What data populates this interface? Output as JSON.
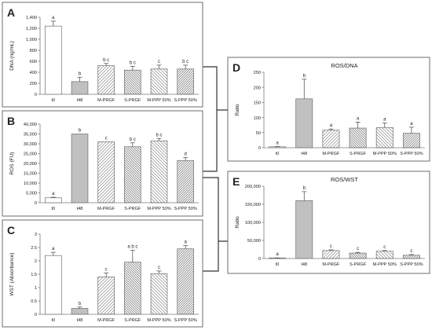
{
  "chart_data": [
    {
      "id": "A",
      "type": "bar",
      "panel_label": "A",
      "title": "",
      "ylabel": "DNA (ng/mL)",
      "ylim": [
        0,
        1400
      ],
      "yticks": [
        "0",
        "200",
        "400",
        "600",
        "800",
        "1,000",
        "1,200",
        "1,400"
      ],
      "categories": [
        "t0",
        "t48",
        "M-PRGF",
        "S-PRGF",
        "M-PPP 50%",
        "S-PPP 50%"
      ],
      "values": [
        1240,
        230,
        520,
        440,
        460,
        460
      ],
      "errors": [
        90,
        80,
        40,
        70,
        70,
        70
      ],
      "letters": [
        "a",
        "b",
        "b c",
        "b c",
        "c",
        "b c"
      ]
    },
    {
      "id": "B",
      "type": "bar",
      "panel_label": "B",
      "title": "",
      "ylabel": "ROS (FU)",
      "ylim": [
        0,
        40000
      ],
      "yticks": [
        "0",
        "5,000",
        "10,000",
        "15,000",
        "20,000",
        "25,000",
        "30,000",
        "35,000",
        "40,000"
      ],
      "categories": [
        "t0",
        "t48",
        "M-PRGF",
        "S-PRGF",
        "M-PPP 50%",
        "S-PPP 50%"
      ],
      "values": [
        2500,
        35000,
        31000,
        28500,
        31500,
        21500
      ],
      "errors": [
        300,
        0,
        0,
        2000,
        1200,
        1500
      ],
      "letters": [
        "a",
        "b",
        "c",
        "b c",
        "b c",
        "d"
      ]
    },
    {
      "id": "C",
      "type": "bar",
      "panel_label": "C",
      "title": "",
      "ylabel": "WST (Absorbance)",
      "ylim": [
        0,
        3
      ],
      "yticks": [
        "0",
        "0.5",
        "1",
        "1.5",
        "2",
        "2.5",
        "3"
      ],
      "categories": [
        "t0",
        "t48",
        "M-PRGF",
        "S-PRGF",
        "M-PPP 50%",
        "S-PPP 50%"
      ],
      "values": [
        2.2,
        0.22,
        1.4,
        1.95,
        1.52,
        2.45
      ],
      "errors": [
        0.12,
        0.05,
        0.15,
        0.45,
        0.1,
        0.12
      ],
      "letters": [
        "a",
        "b",
        "c",
        "a b c",
        "c",
        "a"
      ]
    },
    {
      "id": "D",
      "type": "bar",
      "panel_label": "D",
      "title": "ROS/DNA",
      "ylabel": "Ratio",
      "ylim": [
        0,
        250
      ],
      "yticks": [
        "0",
        "50",
        "100",
        "150",
        "200",
        "250"
      ],
      "categories": [
        "t0",
        "t48",
        "M-PRGF",
        "S-PRGF",
        "M-PPP 50%",
        "S-PPP 50%"
      ],
      "values": [
        3,
        162,
        58,
        65,
        67,
        48
      ],
      "errors": [
        1,
        65,
        4,
        20,
        15,
        20
      ],
      "letters": [
        "a",
        "b",
        "a",
        "a",
        "a",
        "a"
      ]
    },
    {
      "id": "E",
      "type": "bar",
      "panel_label": "E",
      "title": "ROS/WST",
      "ylabel": "Ratio",
      "ylim": [
        0,
        200000
      ],
      "yticks": [
        "0",
        "50,000",
        "100,000",
        "150,000",
        "200,000"
      ],
      "categories": [
        "t0",
        "t48",
        "M-PRGF",
        "S-PRGF",
        "M-PPP 50%",
        "S-PPP 50%"
      ],
      "values": [
        1500,
        160000,
        22000,
        15000,
        20000,
        9000
      ],
      "errors": [
        300,
        25000,
        2000,
        2000,
        2000,
        2000
      ],
      "letters": [
        "a",
        "b",
        "c",
        "c",
        "c",
        "c"
      ]
    }
  ],
  "colors": {
    "t0": "#ffffff",
    "t48": "#c0c0c0",
    "stroke": "#6e6e6e",
    "hatch": "#8a8a8a",
    "axis": "#7a7a7a",
    "text": "#222222",
    "panel_border": "#6e6e6e",
    "connector": "#333333"
  }
}
